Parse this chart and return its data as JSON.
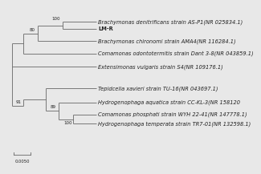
{
  "taxa": [
    "Brachymonas denitrificans strain AS-P1(NR 025834.1)",
    "LM-R",
    "Brachymonas chironomi strain AMA4(NR 116284.1)",
    "Comamonas odontotermitis strain Dant 3-8(NR 043859.1)",
    "Extensimonas vulgaris strain S4(NR 109176.1)",
    "Tepidcella xavieri strain TU-16(NR 043697.1)",
    "Hydrogenophaga aquatica strain CC-KL-3(NR 158120",
    "Comamonas phosphati strain WYH 22-41(NR 147778.1)",
    "Hydrogenophaga temperata strain TR7-01(NR 132598.1)"
  ],
  "background": "#e8e8e8",
  "line_color": "#666666",
  "text_color": "#222222",
  "font_size": 4.8,
  "bold_taxon": "LM-R",
  "scale_bar_label": "0.0050"
}
